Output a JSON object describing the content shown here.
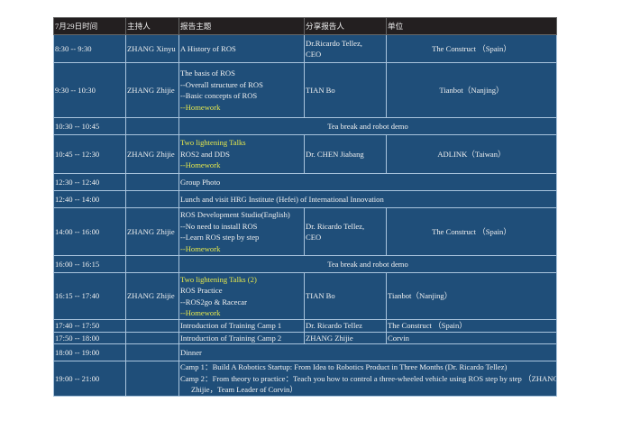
{
  "header": [
    "7月29日时间",
    "主持人",
    "报告主题",
    "分享报告人",
    "单位"
  ],
  "rows": {
    "r1": {
      "time": "8:30 -- 9:30",
      "host": "ZHANG Xinyu",
      "topic": "A History of ROS",
      "speaker1": "Dr.Ricardo Tellez,",
      "speaker2": "CEO",
      "org": "The Construct （Spain）"
    },
    "r2": {
      "time": "9:30 -- 10:30",
      "host": "ZHANG Zhijie",
      "t1": "The basis of ROS",
      "t2": "--Overall structure of ROS",
      "t3": "--Basic concepts of ROS",
      "t4": "--Homework",
      "speaker": "TIAN Bo",
      "org": "Tianbot（Nanjing）"
    },
    "r3": {
      "time": "10:30 -- 10:45",
      "event": "Tea break and robot demo"
    },
    "r4": {
      "time": "10:45 -- 12:30",
      "host": "ZHANG Zhijie",
      "t1": "Two lightening Talks",
      "t2": "ROS2 and DDS",
      "t3": "--Homework",
      "speaker": "Dr. CHEN Jiabang",
      "org": "ADLINK（Taiwan）"
    },
    "r5": {
      "time": "12:30 -- 12:40",
      "event": "Group Photo"
    },
    "r6": {
      "time": "12:40 -- 14:00",
      "event": "Lunch and visit HRG Institute (Hefei) of International Innovation"
    },
    "r7": {
      "time": "14:00 -- 16:00",
      "host": "ZHANG Zhijie",
      "t1": "ROS Development Studio(English)",
      "t2": "--No need to install ROS",
      "t3": "--Learn ROS step by step",
      "t4": "--Homework",
      "speaker1": "Dr. Ricardo Tellez,",
      "speaker2": "CEO",
      "org": "The Construct （Spain）"
    },
    "r8": {
      "time": "16:00 -- 16:15",
      "event": "Tea break and robot demo"
    },
    "r9": {
      "time": "16:15 -- 17:40",
      "host": "ZHANG Zhijie",
      "t1": "Two lightening Talks (2)",
      "t2": "ROS Practice",
      "t3": "--ROS2go & Racecar",
      "t4": "--Homework",
      "speaker": "TIAN Bo",
      "org": "Tianbot（Nanjing）"
    },
    "r10": {
      "time": "17:40 -- 17:50",
      "topic": "Introduction of Training Camp 1",
      "speaker": "Dr. Ricardo Tellez",
      "org": "The Construct （Spain）"
    },
    "r11": {
      "time": "17:50 -- 18:00",
      "topic": "Introduction of Training Camp 2",
      "speaker": "ZHANG Zhijie",
      "org": "Corvin"
    },
    "r12": {
      "time": "18:00 -- 19:00",
      "event": "Dinner"
    },
    "r13": {
      "time": "19:00 -- 21:00",
      "camp1": "Camp 1：Build A Robotics Startup: From Idea to Robotics Product in Three Months (Dr. Ricardo Tellez)",
      "camp2": "Camp 2：From theory to practice：Teach you how to control a three-wheeled vehicle using ROS step by step （ZHANG",
      "camp2b": "Zhijie，Team Leader of Corvin）"
    }
  },
  "colors": {
    "cell_bg": "#1f4e79",
    "header_bg": "#231f20",
    "highlight": "#e6e84c"
  }
}
